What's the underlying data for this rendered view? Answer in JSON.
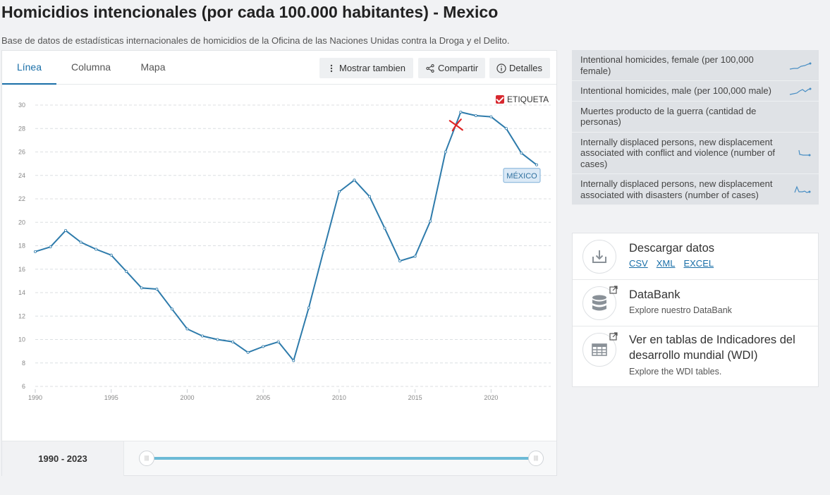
{
  "page": {
    "title": "Homicidios intencionales (por cada 100.000 habitantes) - Mexico",
    "subtitle": "Base de datos de estadísticas internacionales de homicidios de la Oficina de las Naciones Unidas contra la Droga y el Delito."
  },
  "tabs": [
    {
      "label": "Línea",
      "active": true
    },
    {
      "label": "Columna",
      "active": false
    },
    {
      "label": "Mapa",
      "active": false
    }
  ],
  "toolbar": {
    "more_label": "Mostrar tambien",
    "share_label": "Compartir",
    "details_label": "Detalles"
  },
  "etiqueta_label": "ETIQUETA",
  "chart_data": {
    "type": "line",
    "title": "",
    "xlabel": "",
    "ylabel": "",
    "xlim": [
      1990,
      2023
    ],
    "ylim": [
      6,
      30
    ],
    "y_ticks": [
      6,
      8,
      10,
      12,
      14,
      16,
      18,
      20,
      22,
      24,
      26,
      28,
      30
    ],
    "x_ticks": [
      1990,
      1995,
      2000,
      2005,
      2010,
      2015,
      2020
    ],
    "grid": "horizontal dashed",
    "color": "#2e7bab",
    "series": [
      {
        "label": "MÉXICO",
        "x": [
          1990,
          1991,
          1992,
          1993,
          1994,
          1995,
          1996,
          1997,
          1998,
          1999,
          2000,
          2001,
          2002,
          2003,
          2004,
          2005,
          2006,
          2007,
          2008,
          2009,
          2010,
          2011,
          2012,
          2013,
          2014,
          2015,
          2016,
          2017,
          2018,
          2019,
          2020,
          2021,
          2022,
          2023
        ],
        "values": [
          17.5,
          17.9,
          19.3,
          18.3,
          17.7,
          17.2,
          15.8,
          14.4,
          14.3,
          12.6,
          10.9,
          10.3,
          10.0,
          9.8,
          8.9,
          9.4,
          9.8,
          8.2,
          12.7,
          17.7,
          22.6,
          23.6,
          22.2,
          19.5,
          16.7,
          17.1,
          20.1,
          26.0,
          29.4,
          29.1,
          29.0,
          28.0,
          25.9,
          24.9
        ]
      }
    ]
  },
  "range": {
    "label": "1990 - 2023"
  },
  "related": [
    {
      "label": "Intentional homicides, female (per 100,000 female)",
      "spark": "rising"
    },
    {
      "label": "Intentional homicides, male (per 100,000 male)",
      "spark": "rising"
    },
    {
      "label": "Muertes producto de la guerra (cantidad de personas)",
      "spark": ""
    },
    {
      "label": "Internally displaced persons, new displacement associated with conflict and violence (number of cases)",
      "spark": "falling"
    },
    {
      "label": "Internally displaced persons, new displacement associated with disasters (number of cases)",
      "spark": "peak"
    }
  ],
  "actions": {
    "download": {
      "title": "Descargar datos",
      "links": [
        "CSV",
        "XML",
        "EXCEL"
      ],
      "icon": "download-icon"
    },
    "databank": {
      "title": "DataBank",
      "desc": "Explore nuestro DataBank",
      "icon": "database-icon"
    },
    "wdi": {
      "title_line1": "Ver en tablas de Indicadores del",
      "title_line2": "desarrollo mundial (WDI)",
      "desc": "Explore the WDI tables.",
      "icon": "table-icon"
    }
  }
}
